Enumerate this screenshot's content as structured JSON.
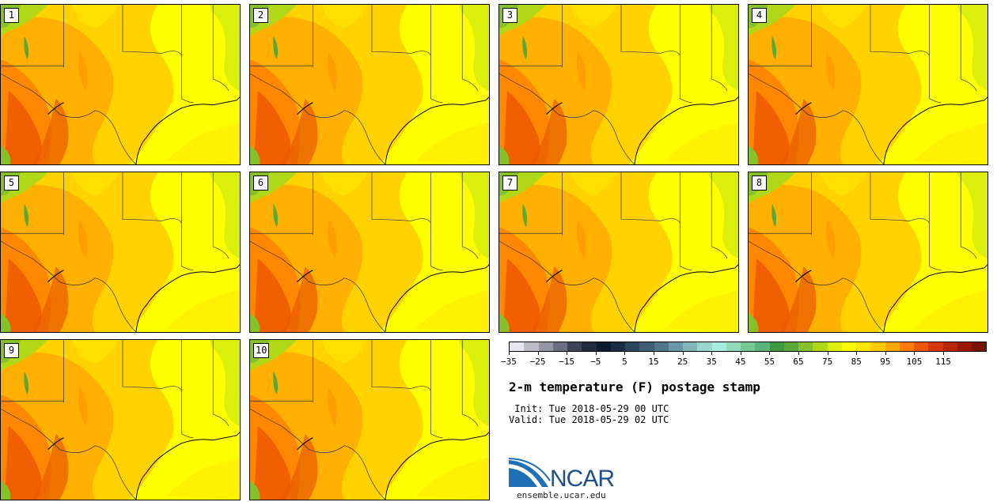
{
  "panels": [
    "1",
    "2",
    "3",
    "4",
    "5",
    "6",
    "7",
    "8",
    "9",
    "10"
  ],
  "colorbar": {
    "colors": [
      "#e6e6ee",
      "#bcbcc8",
      "#9496a6",
      "#6a6e82",
      "#3e4458",
      "#212a3e",
      "#0e1a30",
      "#1a2c44",
      "#2c4660",
      "#3f5e76",
      "#527688",
      "#6a98a6",
      "#84b6b8",
      "#9ad6cc",
      "#a8ece0",
      "#94dcbc",
      "#78c896",
      "#5ab47a",
      "#3e9a3e",
      "#5aa83a",
      "#86c02a",
      "#b0d818",
      "#dcee0c",
      "#fafa00",
      "#ffe600",
      "#ffcc00",
      "#ffa800",
      "#ff7c00",
      "#ec5600",
      "#d43a00",
      "#b82600",
      "#9a1800",
      "#7a1208"
    ],
    "tick_labels": [
      "−35",
      "−25",
      "−15",
      "−5",
      "5",
      "15",
      "25",
      "35",
      "45",
      "55",
      "65",
      "75",
      "85",
      "95",
      "105",
      "115"
    ]
  },
  "title": "2-m temperature (F) postage stamp",
  "init": " Init: Tue 2018-05-29 00 UTC",
  "valid": "Valid: Tue 2018-05-29 02 UTC",
  "logo_text": "NCAR",
  "site": "ensemble.ucar.edu"
}
